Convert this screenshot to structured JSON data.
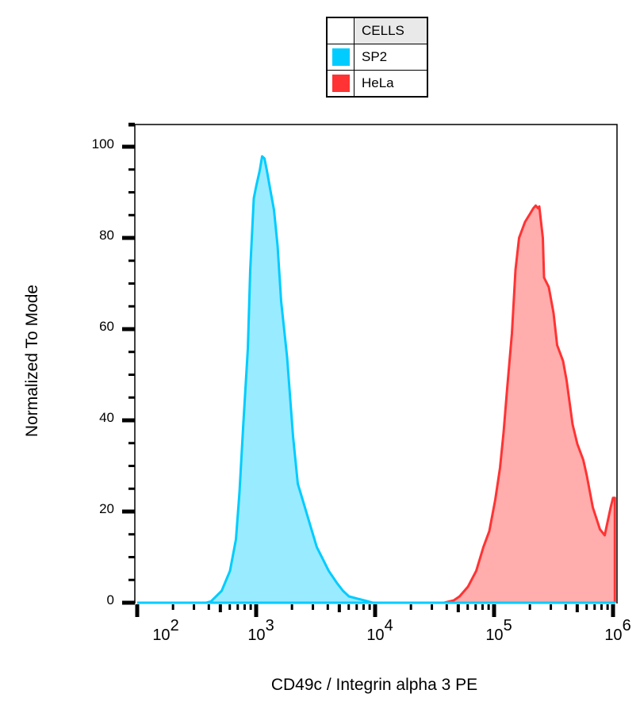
{
  "legend": {
    "header": "CELLS",
    "items": [
      {
        "label": "SP2",
        "color": "#00ccff"
      },
      {
        "label": "HeLa",
        "color": "#ff3333"
      }
    ]
  },
  "chart_data": {
    "type": "area",
    "title": "",
    "xlabel": "CD49c / Integrin alpha 3 PE",
    "ylabel": "Normalized To Mode",
    "xscale": "log",
    "xlim_log10": [
      2.0,
      6.02
    ],
    "ylim": [
      0,
      105
    ],
    "x_tick_labels": [
      {
        "base": "10",
        "exp": "2",
        "log10": 2.2
      },
      {
        "base": "10",
        "exp": "3",
        "log10": 3
      },
      {
        "base": "10",
        "exp": "4",
        "log10": 4
      },
      {
        "base": "10",
        "exp": "5",
        "log10": 5
      },
      {
        "base": "10",
        "exp": "6",
        "log10": 6
      }
    ],
    "y_ticks": [
      0,
      20,
      40,
      60,
      80,
      100
    ],
    "grid": false,
    "legend_position": "top-center",
    "series": [
      {
        "name": "SP2",
        "line_color": "#00ccff",
        "fill_color": "#99ebff",
        "points_log10x_y": [
          [
            2.58,
            0.0
          ],
          [
            2.62,
            0.3
          ],
          [
            2.71,
            2.6
          ],
          [
            2.78,
            7.0
          ],
          [
            2.83,
            13.9
          ],
          [
            2.86,
            24.3
          ],
          [
            2.89,
            38.3
          ],
          [
            2.93,
            55.7
          ],
          [
            2.95,
            73.0
          ],
          [
            2.98,
            88.7
          ],
          [
            3.0,
            91.3
          ],
          [
            3.03,
            94.8
          ],
          [
            3.05,
            97.9
          ],
          [
            3.07,
            97.4
          ],
          [
            3.09,
            94.8
          ],
          [
            3.12,
            90.4
          ],
          [
            3.15,
            86.1
          ],
          [
            3.18,
            78.3
          ],
          [
            3.21,
            66.1
          ],
          [
            3.26,
            53.9
          ],
          [
            3.31,
            36.5
          ],
          [
            3.35,
            26.1
          ],
          [
            3.41,
            20.9
          ],
          [
            3.46,
            16.5
          ],
          [
            3.51,
            12.2
          ],
          [
            3.56,
            9.6
          ],
          [
            3.61,
            7.0
          ],
          [
            3.68,
            4.3
          ],
          [
            3.73,
            2.6
          ],
          [
            3.78,
            1.4
          ],
          [
            3.85,
            0.9
          ],
          [
            3.91,
            0.5
          ],
          [
            3.98,
            0.0
          ]
        ]
      },
      {
        "name": "HeLa",
        "line_color": "#ff3333",
        "fill_color": "#ffadad",
        "points_log10x_y": [
          [
            4.58,
            0.0
          ],
          [
            4.66,
            0.5
          ],
          [
            4.71,
            1.4
          ],
          [
            4.78,
            3.5
          ],
          [
            4.85,
            7.0
          ],
          [
            4.91,
            12.2
          ],
          [
            4.96,
            15.7
          ],
          [
            5.01,
            22.6
          ],
          [
            5.05,
            29.6
          ],
          [
            5.08,
            37.4
          ],
          [
            5.11,
            47.0
          ],
          [
            5.15,
            59.1
          ],
          [
            5.18,
            73.0
          ],
          [
            5.21,
            80.0
          ],
          [
            5.26,
            83.5
          ],
          [
            5.3,
            85.2
          ],
          [
            5.33,
            86.5
          ],
          [
            5.35,
            87.1
          ],
          [
            5.37,
            86.5
          ],
          [
            5.38,
            86.9
          ],
          [
            5.41,
            80.0
          ],
          [
            5.42,
            71.3
          ],
          [
            5.46,
            69.2
          ],
          [
            5.5,
            63.5
          ],
          [
            5.53,
            56.5
          ],
          [
            5.58,
            53.0
          ],
          [
            5.61,
            48.7
          ],
          [
            5.66,
            39.1
          ],
          [
            5.7,
            34.8
          ],
          [
            5.75,
            31.3
          ],
          [
            5.78,
            27.8
          ],
          [
            5.83,
            20.9
          ],
          [
            5.89,
            16.1
          ],
          [
            5.93,
            14.8
          ],
          [
            5.98,
            20.9
          ],
          [
            6.0,
            23.0
          ],
          [
            6.015,
            23.0
          ],
          [
            6.015,
            0.0
          ]
        ]
      }
    ]
  }
}
